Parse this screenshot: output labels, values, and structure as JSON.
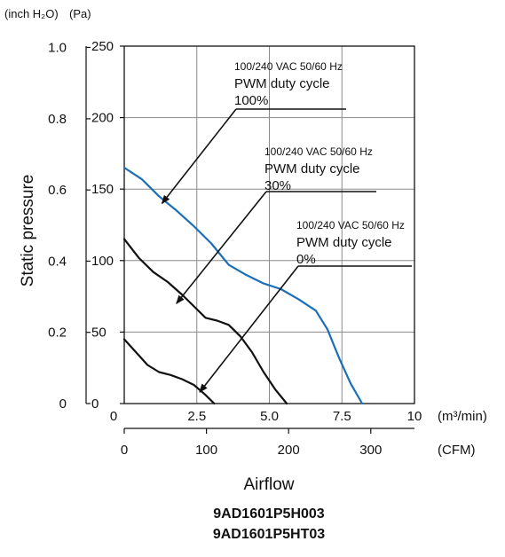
{
  "chart_data": {
    "type": "line",
    "title": "",
    "xlabel": "Airflow",
    "ylabel": "Static pressure",
    "x_unit": "(m³/min)",
    "x2_unit": "(CFM)",
    "y_unit": "(Pa)",
    "y2_unit": "(inch H₂O)",
    "xlim": [
      0,
      10
    ],
    "ylim": [
      0,
      250
    ],
    "x_ticks": [
      "0",
      "2.5",
      "5.0",
      "7.5",
      "10"
    ],
    "y_ticks": [
      "0",
      "50",
      "100",
      "150",
      "200",
      "250"
    ],
    "x2_ticks": [
      "0",
      "100",
      "200",
      "300"
    ],
    "x2_tick_values": [
      0,
      2.832,
      5.663,
      8.495
    ],
    "y2_ticks": [
      "0",
      "0.2",
      "0.4",
      "0.6",
      "0.8",
      "1.0"
    ],
    "y2_tick_values": [
      0,
      49.8,
      99.6,
      149.4,
      199.2,
      249.1
    ],
    "grid": true,
    "series": [
      {
        "color": "#1a6fb8",
        "x": [
          0,
          0.6,
          1.2,
          1.8,
          2.4,
          3.0,
          3.6,
          4.2,
          4.8,
          5.4,
          6.0,
          6.6,
          7.0,
          7.4,
          7.8,
          8.2
        ],
        "y": [
          165,
          157,
          145,
          135,
          124,
          112,
          97,
          90,
          84,
          80,
          73,
          65,
          52,
          32,
          14,
          0
        ]
      },
      {
        "color": "#111111",
        "x": [
          0,
          0.5,
          1.0,
          1.5,
          2.0,
          2.4,
          2.8,
          3.2,
          3.6,
          4.0,
          4.4,
          4.8,
          5.2,
          5.6
        ],
        "y": [
          115,
          102,
          92,
          85,
          76,
          68,
          60,
          58,
          55,
          47,
          36,
          22,
          10,
          0
        ]
      },
      {
        "color": "#111111",
        "x": [
          0,
          0.4,
          0.8,
          1.2,
          1.6,
          2.0,
          2.4,
          2.8,
          3.1
        ],
        "y": [
          45,
          36,
          27,
          22,
          20,
          17,
          13,
          6,
          0
        ]
      }
    ],
    "annotations": [
      {
        "line1": "100/240 VAC  50/60 Hz",
        "line2": "PWM duty cycle",
        "line3": "100%"
      },
      {
        "line1": "100/240 VAC  50/60 Hz",
        "line2": "PWM duty cycle",
        "line3": "30%"
      },
      {
        "line1": "100/240 VAC  50/60 Hz",
        "line2": "PWM duty cycle",
        "line3": "0%"
      }
    ]
  },
  "models": [
    "9AD1601P5H003",
    "9AD1601P5HT03"
  ]
}
